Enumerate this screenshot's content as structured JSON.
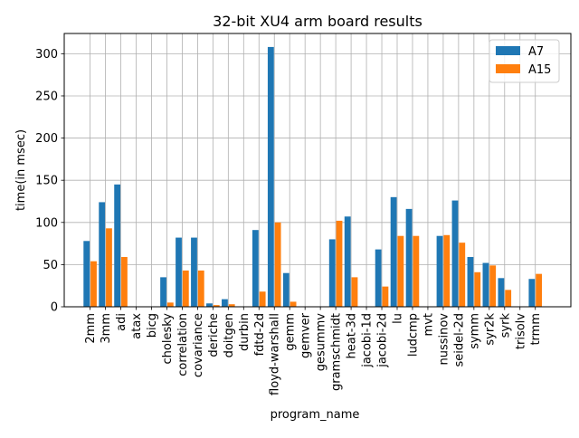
{
  "chart_data": {
    "type": "bar",
    "title": "32-bit XU4 arm board results",
    "xlabel": "program_name",
    "ylabel": "time(in msec)",
    "ylim": [
      0,
      324
    ],
    "yticks": [
      0,
      50,
      100,
      150,
      200,
      250,
      300
    ],
    "grid": true,
    "legend_position": "top-right",
    "categories": [
      "2mm",
      "3mm",
      "adi",
      "atax",
      "bicg",
      "cholesky",
      "correlation",
      "covariance",
      "deriche",
      "doitgen",
      "durbin",
      "fdtd-2d",
      "floyd-warshall",
      "gemm",
      "gemver",
      "gesummv",
      "gramschmidt",
      "heat-3d",
      "jacobi-1d",
      "jacobi-2d",
      "lu",
      "ludcmp",
      "mvt",
      "nussinov",
      "seidel-2d",
      "symm",
      "syr2k",
      "syrk",
      "trisolv",
      "trmm"
    ],
    "series": [
      {
        "name": "A7",
        "color": "#1f77b4",
        "values": [
          78,
          124,
          145,
          0,
          0,
          35,
          82,
          82,
          4,
          9,
          0,
          91,
          308,
          40,
          0,
          0,
          80,
          107,
          0,
          68,
          130,
          116,
          0,
          84,
          126,
          59,
          52,
          34,
          0,
          33
        ]
      },
      {
        "name": "A15",
        "color": "#ff7f0e",
        "values": [
          54,
          93,
          59,
          0,
          0,
          5,
          43,
          43,
          2,
          3,
          0,
          18,
          100,
          6,
          0,
          0,
          102,
          35,
          0,
          24,
          84,
          84,
          0,
          85,
          76,
          41,
          49,
          20,
          0,
          39
        ]
      }
    ]
  }
}
